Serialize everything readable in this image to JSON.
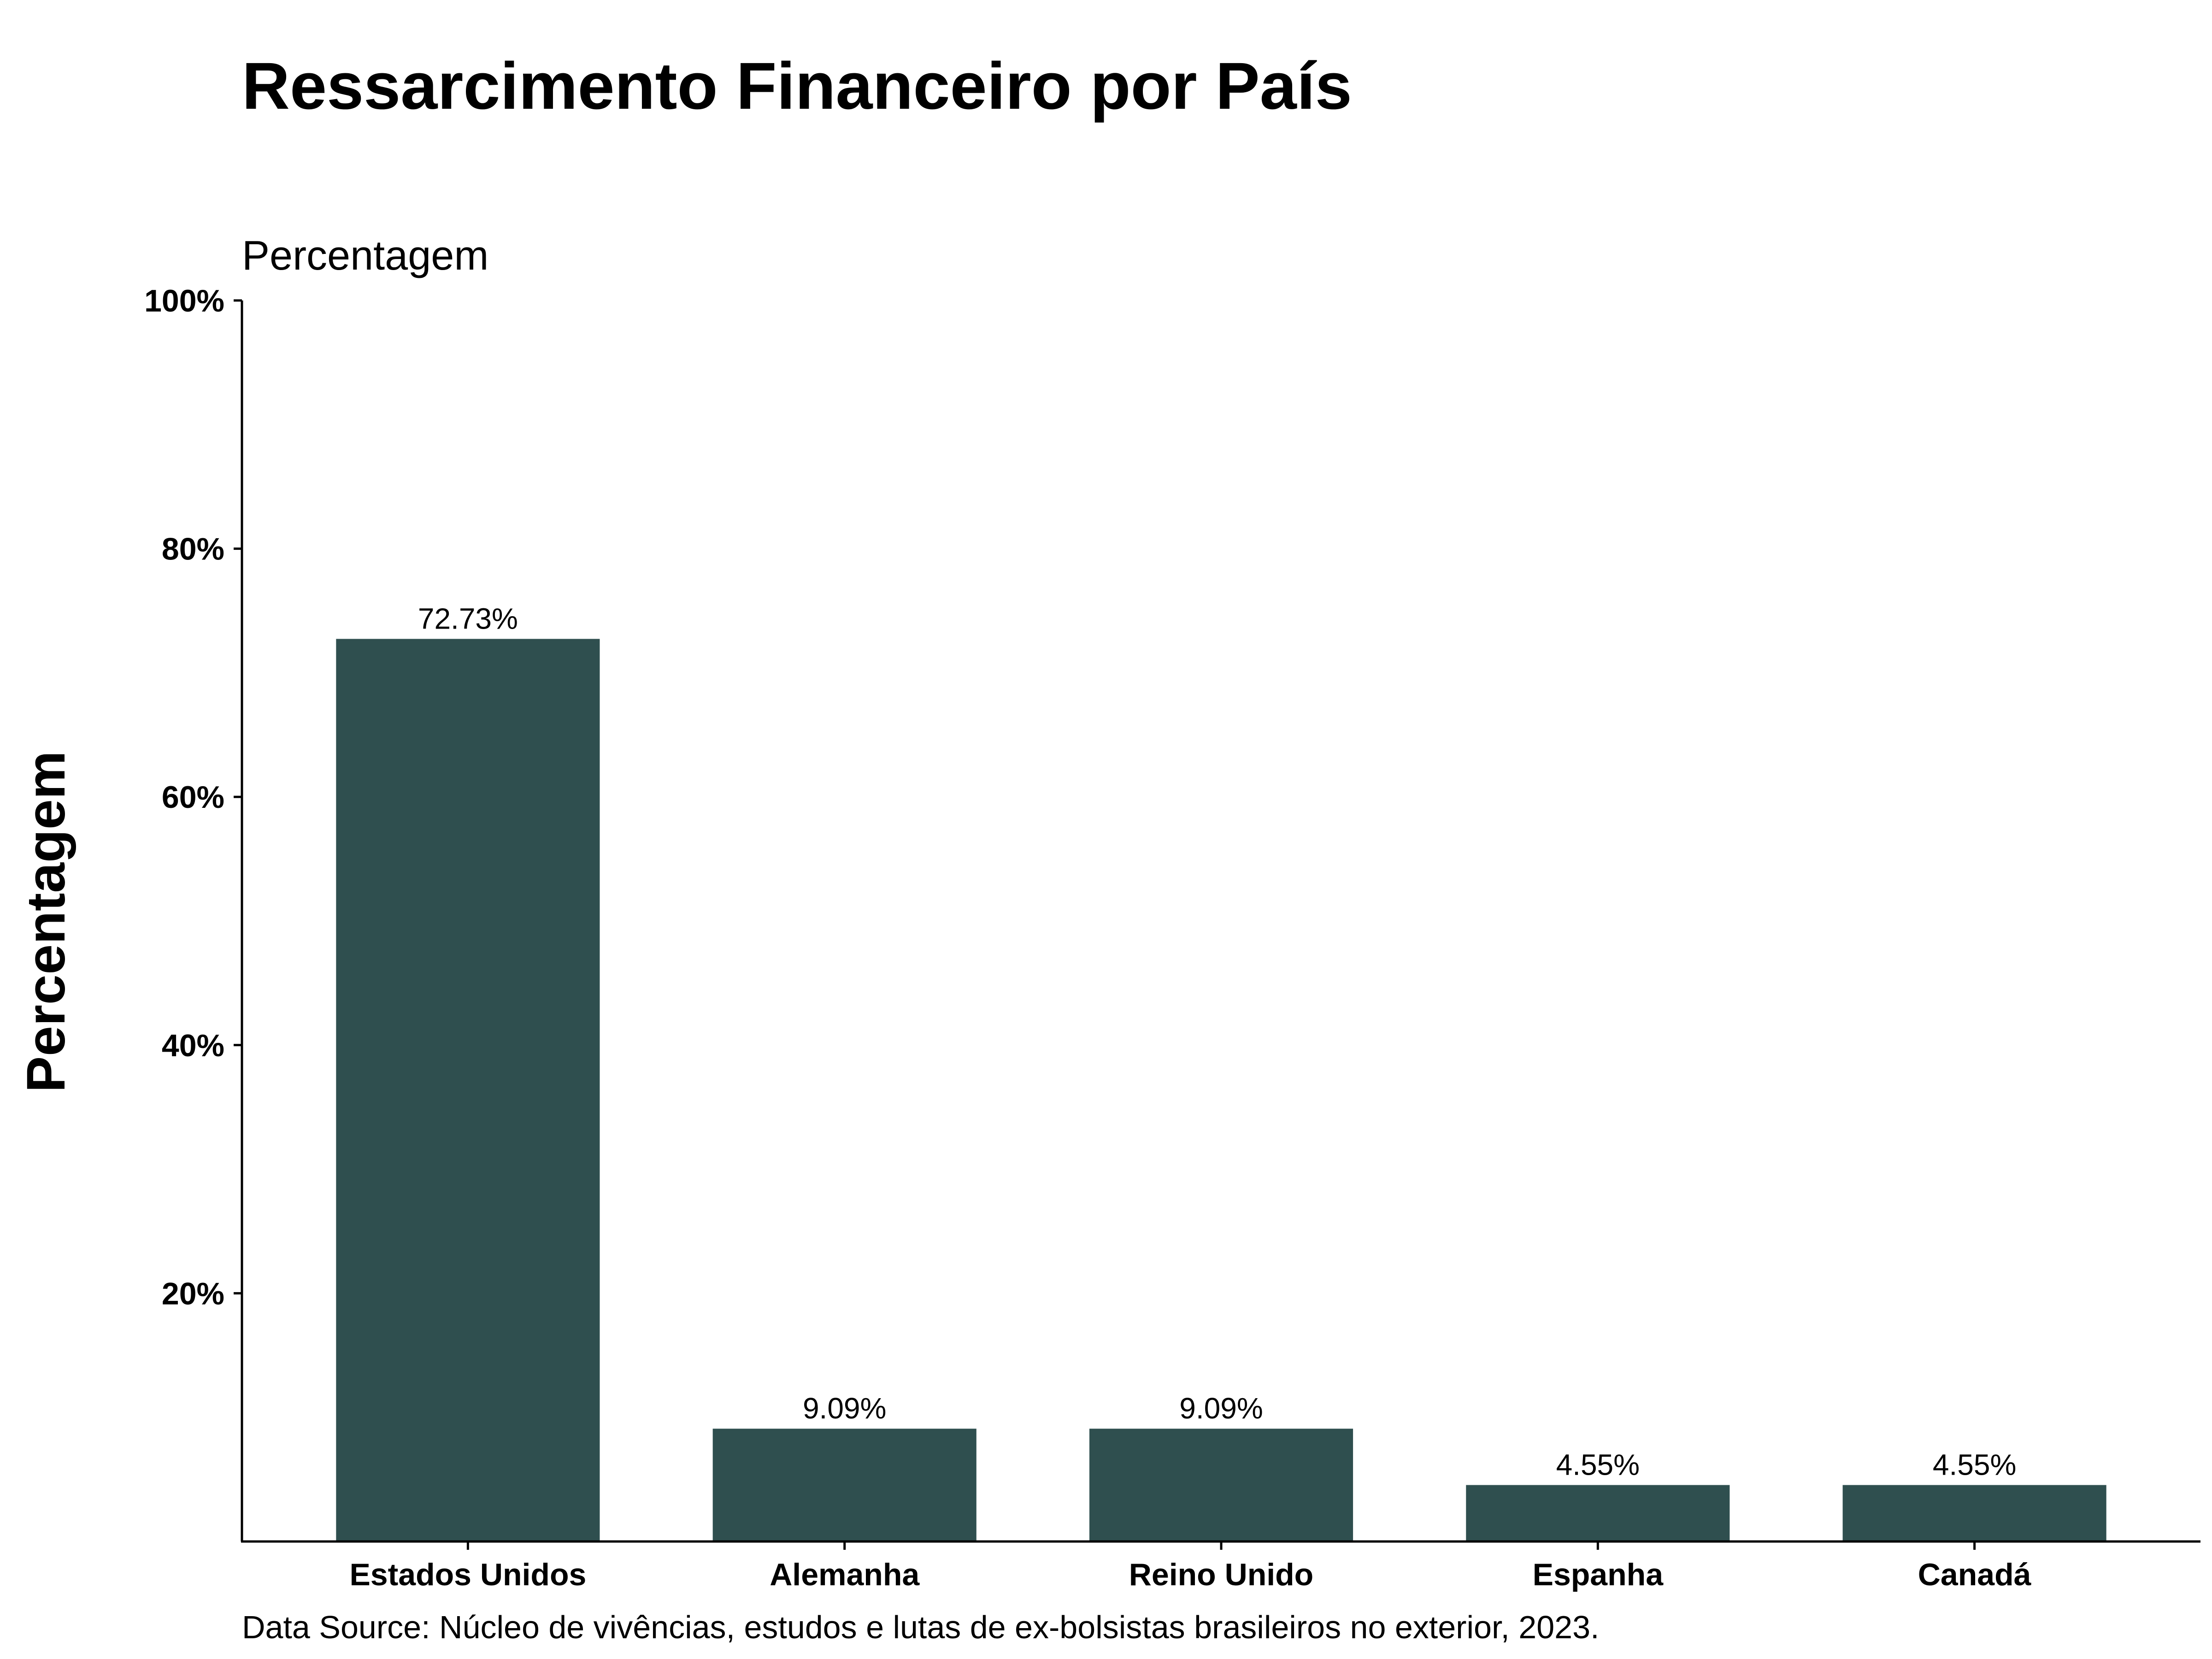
{
  "chart_data": {
    "type": "bar",
    "title": "Ressarcimento Financeiro por País",
    "subtitle": "Percentagem",
    "xlabel": "",
    "ylabel": "Percentagem",
    "categories": [
      "Estados Unidos",
      "Alemanha",
      "Reino Unido",
      "Espanha",
      "Canadá"
    ],
    "values": [
      72.73,
      9.09,
      9.09,
      4.55,
      4.55
    ],
    "data_labels": [
      "72.73%",
      "9.09%",
      "9.09%",
      "4.55%",
      "4.55%"
    ],
    "ylim": [
      0,
      100
    ],
    "yticks": [
      20,
      40,
      60,
      80,
      100
    ],
    "ytick_labels": [
      "20%",
      "40%",
      "60%",
      "80%",
      "100%"
    ],
    "grid": false,
    "legend": "none",
    "bar_color": "#2f4f4f",
    "caption": "Data Source: Núcleo de vivências, estudos e lutas de ex-bolsistas brasileiros no exterior, 2023."
  }
}
